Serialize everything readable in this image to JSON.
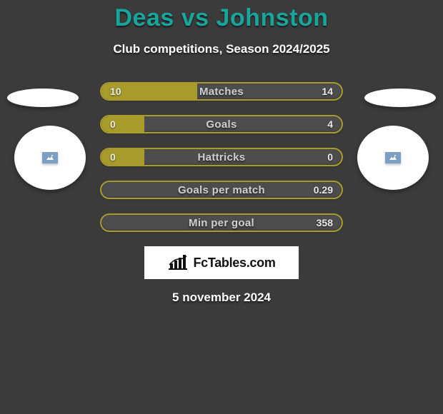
{
  "background_color": "#3b3b3b",
  "title": {
    "text": "Deas vs Johnston",
    "color": "#17a69c",
    "fontsize": 34
  },
  "subtitle": {
    "text": "Club competitions, Season 2024/2025",
    "color": "#ffffff",
    "fontsize": 17
  },
  "date": {
    "text": "5 november 2024",
    "color": "#ffffff",
    "fontsize": 17
  },
  "left_fill_color": "#a79b2b",
  "track_color": "#4d4d4d",
  "border_color": "#a79b2b",
  "label_color": "#cfcfcf",
  "value_color": "#e8e8e8",
  "bars": [
    {
      "label": "Matches",
      "left": "10",
      "right": "14",
      "left_width_pct": 40
    },
    {
      "label": "Goals",
      "left": "0",
      "right": "4",
      "left_width_pct": 18
    },
    {
      "label": "Hattricks",
      "left": "0",
      "right": "0",
      "left_width_pct": 18
    },
    {
      "label": "Goals per match",
      "left": "",
      "right": "0.29",
      "left_width_pct": 0
    },
    {
      "label": "Min per goal",
      "left": "",
      "right": "358",
      "left_width_pct": 0
    }
  ],
  "logo": {
    "text": "FcTables.com",
    "color": "#111111",
    "bg": "#ffffff"
  },
  "badge_bg": "#7aa0c4",
  "shapes": {
    "ellipse_color": "#ffffff",
    "circle_color": "#ffffff"
  }
}
